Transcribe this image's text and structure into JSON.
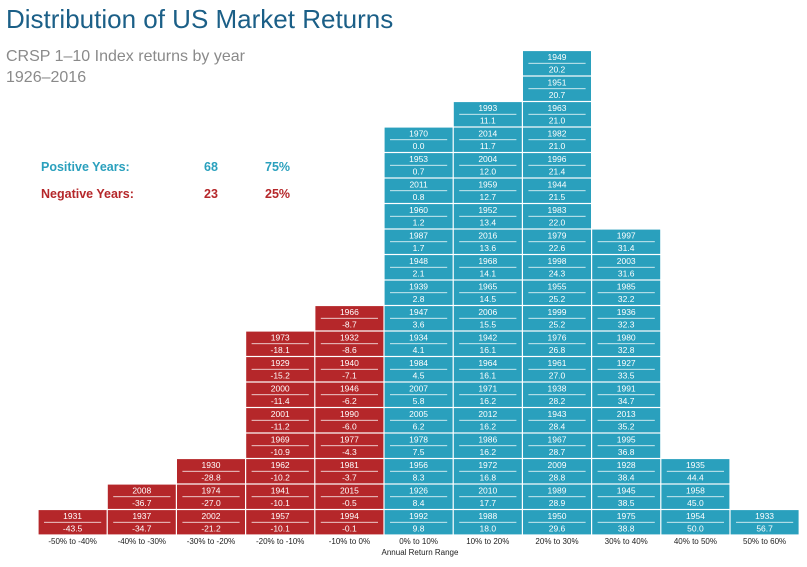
{
  "title": "Distribution of US Market Returns",
  "subtitle_line1": "CRSP 1–10 Index returns by year",
  "subtitle_line2": "1926–2016",
  "stats": {
    "positive": {
      "label": "Positive Years:",
      "count": "68",
      "pct": "75%",
      "color": "#2aa0bd"
    },
    "negative": {
      "label": "Negative Years:",
      "count": "23",
      "pct": "25%",
      "color": "#b5272a"
    }
  },
  "chart_data": {
    "type": "bar",
    "title": "Distribution of US Market Returns",
    "xlabel": "Annual Return Range",
    "ylabel": "",
    "categories": [
      "-50% to -40%",
      "-40% to -30%",
      "-30% to -20%",
      "-20% to -10%",
      "-10% to 0%",
      "0% to 10%",
      "10% to 20%",
      "20% to 30%",
      "30% to 40%",
      "40% to 50%",
      "50% to 60%"
    ],
    "values": [
      1,
      2,
      3,
      8,
      9,
      16,
      17,
      19,
      12,
      3,
      1
    ],
    "colors": {
      "positive": "#2aa0bd",
      "negative": "#b5272a"
    },
    "bins": [
      {
        "range": "-50% to -40%",
        "sign": "negative",
        "years": [
          {
            "year": "1931",
            "ret": "-43.5"
          }
        ]
      },
      {
        "range": "-40% to -30%",
        "sign": "negative",
        "years": [
          {
            "year": "1937",
            "ret": "-34.7"
          },
          {
            "year": "2008",
            "ret": "-36.7"
          }
        ]
      },
      {
        "range": "-30% to -20%",
        "sign": "negative",
        "years": [
          {
            "year": "2002",
            "ret": "-21.2"
          },
          {
            "year": "1974",
            "ret": "-27.0"
          },
          {
            "year": "1930",
            "ret": "-28.8"
          }
        ]
      },
      {
        "range": "-20% to -10%",
        "sign": "negative",
        "years": [
          {
            "year": "1957",
            "ret": "-10.1"
          },
          {
            "year": "1941",
            "ret": "-10.1"
          },
          {
            "year": "1962",
            "ret": "-10.2"
          },
          {
            "year": "1969",
            "ret": "-10.9"
          },
          {
            "year": "2001",
            "ret": "-11.2"
          },
          {
            "year": "2000",
            "ret": "-11.4"
          },
          {
            "year": "1929",
            "ret": "-15.2"
          },
          {
            "year": "1973",
            "ret": "-18.1"
          }
        ]
      },
      {
        "range": "-10% to 0%",
        "sign": "negative",
        "years": [
          {
            "year": "1994",
            "ret": "-0.1"
          },
          {
            "year": "2015",
            "ret": "-0.5"
          },
          {
            "year": "1981",
            "ret": "-3.7"
          },
          {
            "year": "1977",
            "ret": "-4.3"
          },
          {
            "year": "1990",
            "ret": "-6.0"
          },
          {
            "year": "1946",
            "ret": "-6.2"
          },
          {
            "year": "1940",
            "ret": "-7.1"
          },
          {
            "year": "1932",
            "ret": "-8.6"
          },
          {
            "year": "1966",
            "ret": "-8.7"
          }
        ]
      },
      {
        "range": "0% to 10%",
        "sign": "positive",
        "years": [
          {
            "year": "1992",
            "ret": "9.8"
          },
          {
            "year": "1926",
            "ret": "8.4"
          },
          {
            "year": "1956",
            "ret": "8.3"
          },
          {
            "year": "1978",
            "ret": "7.5"
          },
          {
            "year": "2005",
            "ret": "6.2"
          },
          {
            "year": "2007",
            "ret": "5.8"
          },
          {
            "year": "1984",
            "ret": "4.5"
          },
          {
            "year": "1934",
            "ret": "4.1"
          },
          {
            "year": "1947",
            "ret": "3.6"
          },
          {
            "year": "1939",
            "ret": "2.8"
          },
          {
            "year": "1948",
            "ret": "2.1"
          },
          {
            "year": "1987",
            "ret": "1.7"
          },
          {
            "year": "1960",
            "ret": "1.2"
          },
          {
            "year": "2011",
            "ret": "0.8"
          },
          {
            "year": "1953",
            "ret": "0.7"
          },
          {
            "year": "1970",
            "ret": "0.0"
          }
        ]
      },
      {
        "range": "10% to 20%",
        "sign": "positive",
        "years": [
          {
            "year": "1988",
            "ret": "18.0"
          },
          {
            "year": "2010",
            "ret": "17.7"
          },
          {
            "year": "1972",
            "ret": "16.8"
          },
          {
            "year": "1986",
            "ret": "16.2"
          },
          {
            "year": "2012",
            "ret": "16.2"
          },
          {
            "year": "1971",
            "ret": "16.2"
          },
          {
            "year": "1964",
            "ret": "16.1"
          },
          {
            "year": "1942",
            "ret": "16.1"
          },
          {
            "year": "2006",
            "ret": "15.5"
          },
          {
            "year": "1965",
            "ret": "14.5"
          },
          {
            "year": "1968",
            "ret": "14.1"
          },
          {
            "year": "2016",
            "ret": "13.6"
          },
          {
            "year": "1952",
            "ret": "13.4"
          },
          {
            "year": "1959",
            "ret": "12.7"
          },
          {
            "year": "2004",
            "ret": "12.0"
          },
          {
            "year": "2014",
            "ret": "11.7"
          },
          {
            "year": "1993",
            "ret": "11.1"
          }
        ]
      },
      {
        "range": "20% to 30%",
        "sign": "positive",
        "years": [
          {
            "year": "1950",
            "ret": "29.6"
          },
          {
            "year": "1989",
            "ret": "28.9"
          },
          {
            "year": "2009",
            "ret": "28.8"
          },
          {
            "year": "1967",
            "ret": "28.7"
          },
          {
            "year": "1943",
            "ret": "28.4"
          },
          {
            "year": "1938",
            "ret": "28.2"
          },
          {
            "year": "1961",
            "ret": "27.0"
          },
          {
            "year": "1976",
            "ret": "26.8"
          },
          {
            "year": "1999",
            "ret": "25.2"
          },
          {
            "year": "1955",
            "ret": "25.2"
          },
          {
            "year": "1998",
            "ret": "24.3"
          },
          {
            "year": "1979",
            "ret": "22.6"
          },
          {
            "year": "1983",
            "ret": "22.0"
          },
          {
            "year": "1944",
            "ret": "21.5"
          },
          {
            "year": "1996",
            "ret": "21.4"
          },
          {
            "year": "1982",
            "ret": "21.0"
          },
          {
            "year": "1963",
            "ret": "21.0"
          },
          {
            "year": "1951",
            "ret": "20.7"
          },
          {
            "year": "1949",
            "ret": "20.2"
          }
        ]
      },
      {
        "range": "30% to 40%",
        "sign": "positive",
        "years": [
          {
            "year": "1975",
            "ret": "38.8"
          },
          {
            "year": "1945",
            "ret": "38.5"
          },
          {
            "year": "1928",
            "ret": "38.4"
          },
          {
            "year": "1995",
            "ret": "36.8"
          },
          {
            "year": "2013",
            "ret": "35.2"
          },
          {
            "year": "1991",
            "ret": "34.7"
          },
          {
            "year": "1927",
            "ret": "33.5"
          },
          {
            "year": "1980",
            "ret": "32.8"
          },
          {
            "year": "1936",
            "ret": "32.3"
          },
          {
            "year": "1985",
            "ret": "32.2"
          },
          {
            "year": "2003",
            "ret": "31.6"
          },
          {
            "year": "1997",
            "ret": "31.4"
          }
        ]
      },
      {
        "range": "40% to 50%",
        "sign": "positive",
        "years": [
          {
            "year": "1954",
            "ret": "50.0"
          },
          {
            "year": "1958",
            "ret": "45.0"
          },
          {
            "year": "1935",
            "ret": "44.4"
          }
        ]
      },
      {
        "range": "50% to 60%",
        "sign": "positive",
        "years": [
          {
            "year": "1933",
            "ret": "56.7"
          }
        ]
      }
    ]
  }
}
